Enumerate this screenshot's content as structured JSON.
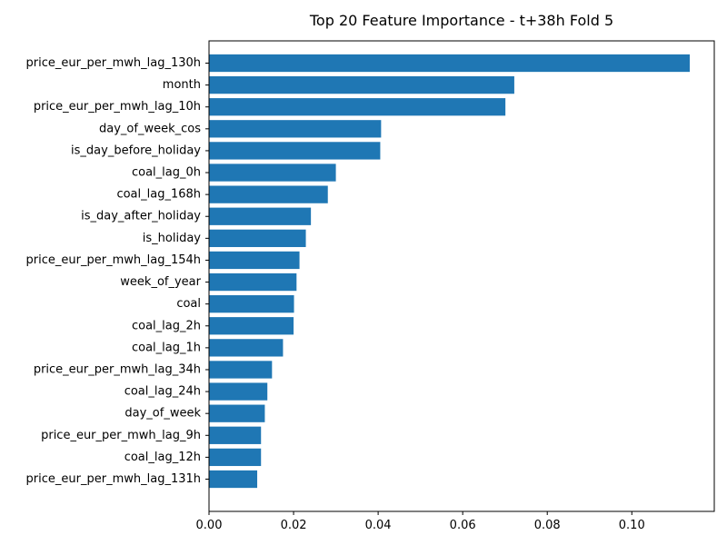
{
  "chart_data": {
    "type": "bar",
    "orientation": "horizontal",
    "title": "Top 20 Feature Importance - t+38h Fold 5",
    "xlabel": "",
    "ylabel": "",
    "xlim": [
      0,
      0.1195
    ],
    "x_ticks": [
      0.0,
      0.02,
      0.04,
      0.06,
      0.08,
      0.1
    ],
    "x_tick_labels": [
      "0.00",
      "0.02",
      "0.04",
      "0.06",
      "0.08",
      "0.10"
    ],
    "grid": false,
    "bar_color": "#1f77b4",
    "categories": [
      "price_eur_per_mwh_lag_130h",
      "month",
      "price_eur_per_mwh_lag_10h",
      "day_of_week_cos",
      "is_day_before_holiday",
      "coal_lag_0h",
      "coal_lag_168h",
      "is_day_after_holiday",
      "is_holiday",
      "price_eur_per_mwh_lag_154h",
      "week_of_year",
      "coal",
      "coal_lag_2h",
      "coal_lag_1h",
      "price_eur_per_mwh_lag_34h",
      "coal_lag_24h",
      "day_of_week",
      "price_eur_per_mwh_lag_9h",
      "coal_lag_12h",
      "price_eur_per_mwh_lag_131h"
    ],
    "values": [
      0.1137,
      0.0722,
      0.0701,
      0.0407,
      0.0405,
      0.03,
      0.0281,
      0.0241,
      0.0229,
      0.0214,
      0.0207,
      0.0201,
      0.02,
      0.0175,
      0.0149,
      0.0138,
      0.0132,
      0.0123,
      0.0123,
      0.0114
    ]
  }
}
